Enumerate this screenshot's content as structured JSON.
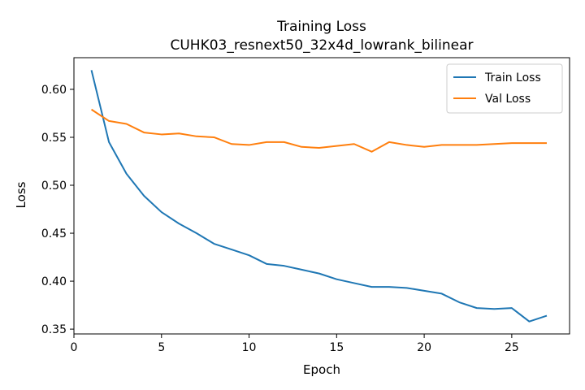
{
  "chart_data": {
    "type": "line",
    "title": "Training Loss",
    "subtitle": "CUHK03_resnext50_32x4d_lowrank_bilinear",
    "xlabel": "Epoch",
    "ylabel": "Loss",
    "xlim": [
      0,
      28.3
    ],
    "ylim": [
      0.345,
      0.633
    ],
    "xticks": [
      0,
      5,
      10,
      15,
      20,
      25
    ],
    "yticks": [
      0.35,
      0.4,
      0.45,
      0.5,
      0.55,
      0.6
    ],
    "ytick_labels": [
      "0.35",
      "0.40",
      "0.45",
      "0.50",
      "0.55",
      "0.60"
    ],
    "grid": false,
    "legend_position": "top-right",
    "x": [
      1,
      2,
      3,
      4,
      5,
      6,
      7,
      8,
      9,
      10,
      11,
      12,
      13,
      14,
      15,
      16,
      17,
      18,
      19,
      20,
      21,
      22,
      23,
      24,
      25,
      26,
      27
    ],
    "series": [
      {
        "name": "Train Loss",
        "color": "#1f77b4",
        "values": [
          0.62,
          0.545,
          0.512,
          0.489,
          0.472,
          0.46,
          0.45,
          0.439,
          0.433,
          0.427,
          0.418,
          0.416,
          0.412,
          0.408,
          0.402,
          0.398,
          0.394,
          0.394,
          0.393,
          0.39,
          0.387,
          0.378,
          0.372,
          0.371,
          0.372,
          0.358,
          0.364
        ]
      },
      {
        "name": "Val Loss",
        "color": "#ff7f0e",
        "values": [
          0.579,
          0.567,
          0.564,
          0.555,
          0.553,
          0.554,
          0.551,
          0.55,
          0.543,
          0.542,
          0.545,
          0.545,
          0.54,
          0.539,
          0.541,
          0.543,
          0.535,
          0.545,
          0.542,
          0.54,
          0.542,
          0.542,
          0.542,
          0.543,
          0.544,
          0.544,
          0.544
        ]
      }
    ]
  }
}
